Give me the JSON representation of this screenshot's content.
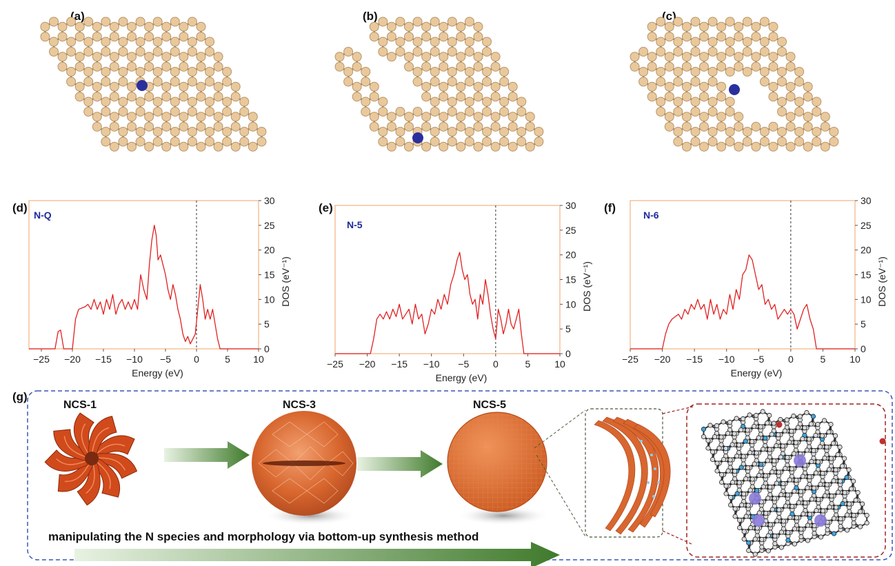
{
  "panels": {
    "a": "(a)",
    "b": "(b)",
    "c": "(c)",
    "d": "(d)",
    "e": "(e)",
    "f": "(f)",
    "g": "(g)"
  },
  "colors": {
    "carbon": "#e9c99c",
    "nitrogen": "#2a2f9e",
    "dos_line": "#e02020",
    "frame": "#f3b88a",
    "arrow": "#3f7a2b",
    "sphere": "#d8662e",
    "dashed_blue": "#3a55b8",
    "dashed_red": "#a02020"
  },
  "chart_data": [
    {
      "type": "line",
      "species_label": "N-Q",
      "xlabel": "Energy (eV)",
      "ylabel": "DOS (eV⁻¹)",
      "xlim": [
        -27,
        10
      ],
      "ylim": [
        0,
        30
      ],
      "xticks": [
        "-25",
        "-20",
        "-15",
        "-10",
        "-5",
        "0",
        "5",
        "10"
      ],
      "yticks": [
        "0",
        "5",
        "10",
        "15",
        "20",
        "25",
        "30"
      ],
      "fermi_line": 0,
      "x": [
        -27,
        -22.8,
        -22.3,
        -21.9,
        -21.4,
        -20.5,
        -20.0,
        -19.5,
        -19.0,
        -18.0,
        -17.5,
        -17.0,
        -16.5,
        -16.0,
        -15.5,
        -15.0,
        -14.5,
        -14.0,
        -13.5,
        -13.0,
        -12.5,
        -12.0,
        -11.5,
        -11.0,
        -10.5,
        -10.0,
        -9.5,
        -9.0,
        -8.5,
        -8.0,
        -7.6,
        -7.2,
        -6.8,
        -6.5,
        -6.2,
        -5.8,
        -5.4,
        -5.0,
        -4.6,
        -4.2,
        -3.8,
        -3.4,
        -3.0,
        -2.6,
        -2.2,
        -1.8,
        -1.4,
        -1.0,
        -0.6,
        -0.2,
        0.2,
        0.6,
        1.0,
        1.4,
        1.8,
        2.2,
        2.6,
        3.0,
        3.4,
        3.8,
        4.2,
        10
      ],
      "y": [
        0,
        0,
        3.5,
        3.8,
        0,
        0,
        0,
        6,
        8,
        8.5,
        9,
        8,
        10,
        8,
        9.5,
        7,
        10,
        8,
        11,
        7,
        9,
        10,
        8,
        9.5,
        8,
        10,
        8,
        15,
        12,
        10,
        17,
        22,
        25,
        23,
        18,
        19,
        17,
        15,
        12,
        10,
        13,
        11,
        8,
        6,
        3,
        1.5,
        2.5,
        1,
        2,
        3,
        8,
        13,
        10,
        6,
        8,
        6,
        8,
        5,
        2,
        0,
        0,
        0
      ]
    },
    {
      "type": "line",
      "species_label": "N-5",
      "xlabel": "Energy (eV)",
      "ylabel": "DOS (eV⁻¹)",
      "xlim": [
        -25,
        10
      ],
      "ylim": [
        0,
        30
      ],
      "xticks": [
        "-25",
        "-20",
        "-15",
        "-10",
        "-5",
        "0",
        "5",
        "10"
      ],
      "yticks": [
        "0",
        "5",
        "10",
        "15",
        "20",
        "25",
        "30"
      ],
      "fermi_line": 0,
      "x": [
        -25,
        -19.5,
        -19.0,
        -18.5,
        -18.0,
        -17.5,
        -17.0,
        -16.5,
        -16.0,
        -15.5,
        -15.0,
        -14.5,
        -14.0,
        -13.5,
        -13.0,
        -12.5,
        -12.0,
        -11.5,
        -11.0,
        -10.5,
        -10.0,
        -9.5,
        -9.0,
        -8.5,
        -8.0,
        -7.5,
        -7.0,
        -6.5,
        -6.0,
        -5.6,
        -5.2,
        -4.8,
        -4.4,
        -4.0,
        -3.6,
        -3.2,
        -2.8,
        -2.4,
        -2.0,
        -1.6,
        -1.2,
        -0.8,
        -0.4,
        0.0,
        0.4,
        0.8,
        1.2,
        1.6,
        2.0,
        2.4,
        2.8,
        3.2,
        3.6,
        4.0,
        4.4,
        10
      ],
      "y": [
        0,
        0,
        3,
        7,
        8,
        7,
        8.5,
        7,
        9,
        7.5,
        10,
        7,
        8,
        9,
        6,
        10,
        7,
        8,
        4,
        6,
        9,
        8,
        11,
        9,
        12,
        10,
        14,
        16,
        19,
        20.5,
        17,
        15,
        16,
        12,
        10,
        11,
        7,
        12,
        10,
        15,
        12,
        8,
        5,
        3,
        9,
        7,
        4,
        6,
        9,
        6,
        5,
        7,
        9,
        4,
        0,
        0
      ]
    },
    {
      "type": "line",
      "species_label": "N-6",
      "xlabel": "Energy (eV)",
      "ylabel": "DOS (eV⁻¹)",
      "xlim": [
        -25,
        10
      ],
      "ylim": [
        0,
        30
      ],
      "xticks": [
        "-25",
        "-20",
        "-15",
        "-10",
        "-5",
        "0",
        "5",
        "10"
      ],
      "yticks": [
        "0",
        "5",
        "10",
        "15",
        "20",
        "25",
        "30"
      ],
      "fermi_line": 0,
      "x": [
        -25,
        -20.0,
        -19.5,
        -19.0,
        -18.5,
        -18.0,
        -17.5,
        -17.0,
        -16.5,
        -16.0,
        -15.5,
        -15.0,
        -14.5,
        -14.0,
        -13.5,
        -13.0,
        -12.5,
        -12.0,
        -11.5,
        -11.0,
        -10.5,
        -10.0,
        -9.5,
        -9.0,
        -8.5,
        -8.0,
        -7.5,
        -7.0,
        -6.5,
        -6.0,
        -5.5,
        -5.0,
        -4.5,
        -4.0,
        -3.5,
        -3.0,
        -2.5,
        -2.0,
        -1.5,
        -1.0,
        -0.5,
        0.0,
        0.5,
        1.0,
        1.5,
        2.0,
        2.5,
        3.0,
        3.5,
        4.0,
        10
      ],
      "y": [
        0,
        0,
        3,
        5,
        6,
        6.5,
        7,
        6,
        8,
        7,
        9,
        8,
        10,
        8,
        9,
        6,
        10,
        7,
        9,
        6,
        8,
        7,
        11,
        8,
        12,
        10,
        15,
        16,
        19,
        18,
        15,
        12,
        13,
        9,
        10,
        8,
        9,
        6,
        7,
        8,
        7,
        8,
        7,
        4,
        6,
        8,
        9,
        6,
        4,
        0,
        0
      ]
    }
  ],
  "samples": [
    "NCS-1",
    "NCS-3",
    "NCS-5"
  ],
  "caption": "manipulating the N species and morphology via bottom-up synthesis method"
}
